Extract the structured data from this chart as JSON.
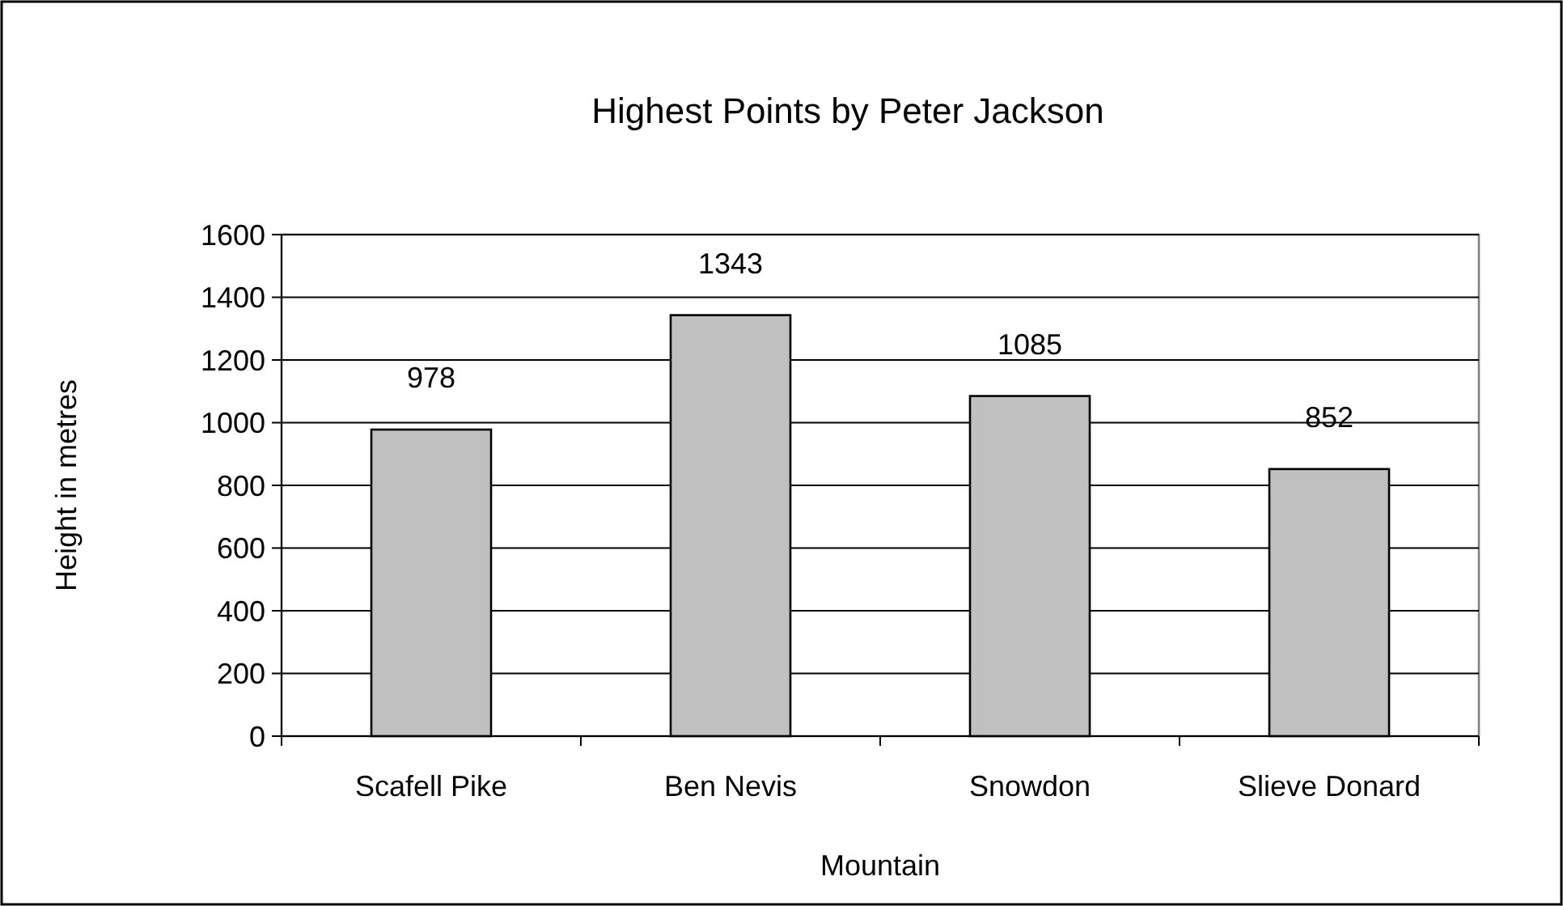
{
  "chart_data": {
    "type": "bar",
    "title": "Highest Points by Peter Jackson",
    "xlabel": "Mountain",
    "ylabel": "Height in metres",
    "categories": [
      "Scafell Pike",
      "Ben Nevis",
      "Snowdon",
      "Slieve Donard"
    ],
    "values": [
      978,
      1343,
      1085,
      852
    ],
    "color": "#c0c0c0",
    "ylim": [
      0,
      1600
    ],
    "yticks": [
      0,
      200,
      400,
      600,
      800,
      1000,
      1200,
      1400,
      1600
    ],
    "grid": "y",
    "data_labels": true
  }
}
